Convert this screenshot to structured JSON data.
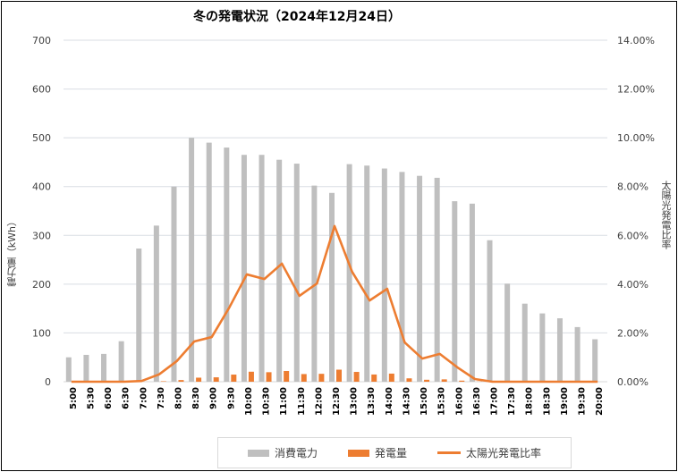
{
  "chart_data": {
    "type": "bar+line",
    "title": "冬の発電状況（2024年12月24日）",
    "xlabel": "",
    "ylabel": "電力量（kWh）",
    "ylabel_right": "太陽光発電比率",
    "ylim": [
      0,
      700
    ],
    "yticks": [
      "0",
      "100",
      "200",
      "300",
      "400",
      "500",
      "600",
      "700"
    ],
    "ylim_right": [
      0,
      0.14
    ],
    "yticks_right": [
      "0.00%",
      "2.00%",
      "4.00%",
      "6.00%",
      "8.00%",
      "10.00%",
      "12.00%",
      "14.00%"
    ],
    "grid": true,
    "legend_position": "bottom",
    "categories": [
      "5:00",
      "5:30",
      "6:00",
      "6:30",
      "7:00",
      "7:30",
      "8:00",
      "8:30",
      "9:00",
      "9:30",
      "10:00",
      "10:30",
      "11:00",
      "11:30",
      "12:00",
      "12:30",
      "13:00",
      "13:30",
      "14:00",
      "14:30",
      "15:00",
      "15:30",
      "16:00",
      "16:30",
      "17:00",
      "17:30",
      "18:00",
      "18:30",
      "19:00",
      "19:30",
      "20:00"
    ],
    "series": [
      {
        "name": "消費電力",
        "type": "bar",
        "axis": "left",
        "color": "#bfbfbf",
        "values": [
          50,
          55,
          57,
          83,
          273,
          320,
          400,
          500,
          490,
          480,
          465,
          465,
          455,
          447,
          402,
          387,
          446,
          443,
          437,
          430,
          422,
          418,
          370,
          365,
          290,
          201,
          160,
          140,
          130,
          112,
          87
        ]
      },
      {
        "name": "発電量",
        "type": "bar",
        "axis": "left",
        "color": "#ed7d31",
        "values": [
          0,
          0,
          0,
          0,
          0.1,
          1,
          3.4,
          8.3,
          9,
          14.6,
          20.5,
          19.5,
          22,
          15.7,
          16.2,
          24.7,
          20.1,
          14.8,
          16.6,
          6.9,
          4,
          4.8,
          2.2,
          0.4,
          0,
          0,
          0,
          0,
          0,
          0,
          0
        ]
      },
      {
        "name": "太陽光発電比率",
        "type": "line",
        "axis": "right",
        "color": "#ed7d31",
        "values": [
          0,
          0,
          0,
          0,
          0.0003,
          0.003,
          0.0084,
          0.0165,
          0.0183,
          0.0304,
          0.044,
          0.0421,
          0.0484,
          0.0352,
          0.0403,
          0.0638,
          0.0451,
          0.0333,
          0.0381,
          0.0161,
          0.0095,
          0.0114,
          0.0059,
          0.0011,
          0,
          0,
          0,
          0,
          0,
          0,
          0
        ]
      }
    ]
  },
  "legend": {
    "items": [
      "消費電力",
      "発電量",
      "太陽光発電比率"
    ]
  }
}
